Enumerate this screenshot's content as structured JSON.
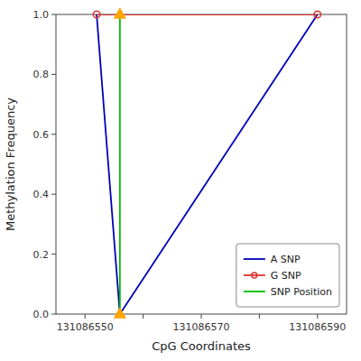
{
  "chart_data": {
    "type": "line",
    "xlabel": "CpG Coordinates",
    "ylabel": "Methylation Frequency",
    "xlim": [
      131086545,
      131086595
    ],
    "ylim": [
      0.0,
      1.0
    ],
    "xticks": [
      131086550,
      {
        "value": 131086560,
        "label": null
      },
      131086570,
      {
        "value": 131086580,
        "label": null
      },
      131086590
    ],
    "yticks": [
      {
        "value": 0.0,
        "label": "0.0"
      },
      0.2,
      0.4,
      0.6,
      0.8,
      {
        "value": 1.0,
        "label": "1.0"
      }
    ],
    "legend": "lower right",
    "series": [
      {
        "name": "A SNP",
        "color": "#0000bb",
        "x": [
          131086552,
          131086556,
          131086590
        ],
        "values": [
          1.0,
          0.0,
          1.0
        ]
      },
      {
        "name": "G SNP",
        "color": "#dd3333",
        "marker": "circle",
        "x": [
          131086552,
          131086590
        ],
        "values": [
          1.0,
          1.0
        ]
      },
      {
        "name": "SNP Position",
        "color": "#00bb00",
        "x": [
          131086556,
          131086556
        ],
        "values": [
          0.0,
          1.0
        ]
      },
      {
        "type": "scatter",
        "color": "#FFA500",
        "marker": "triangle",
        "x": [
          131086556,
          131086556
        ],
        "values": [
          1.0,
          0.0
        ]
      }
    ]
  }
}
